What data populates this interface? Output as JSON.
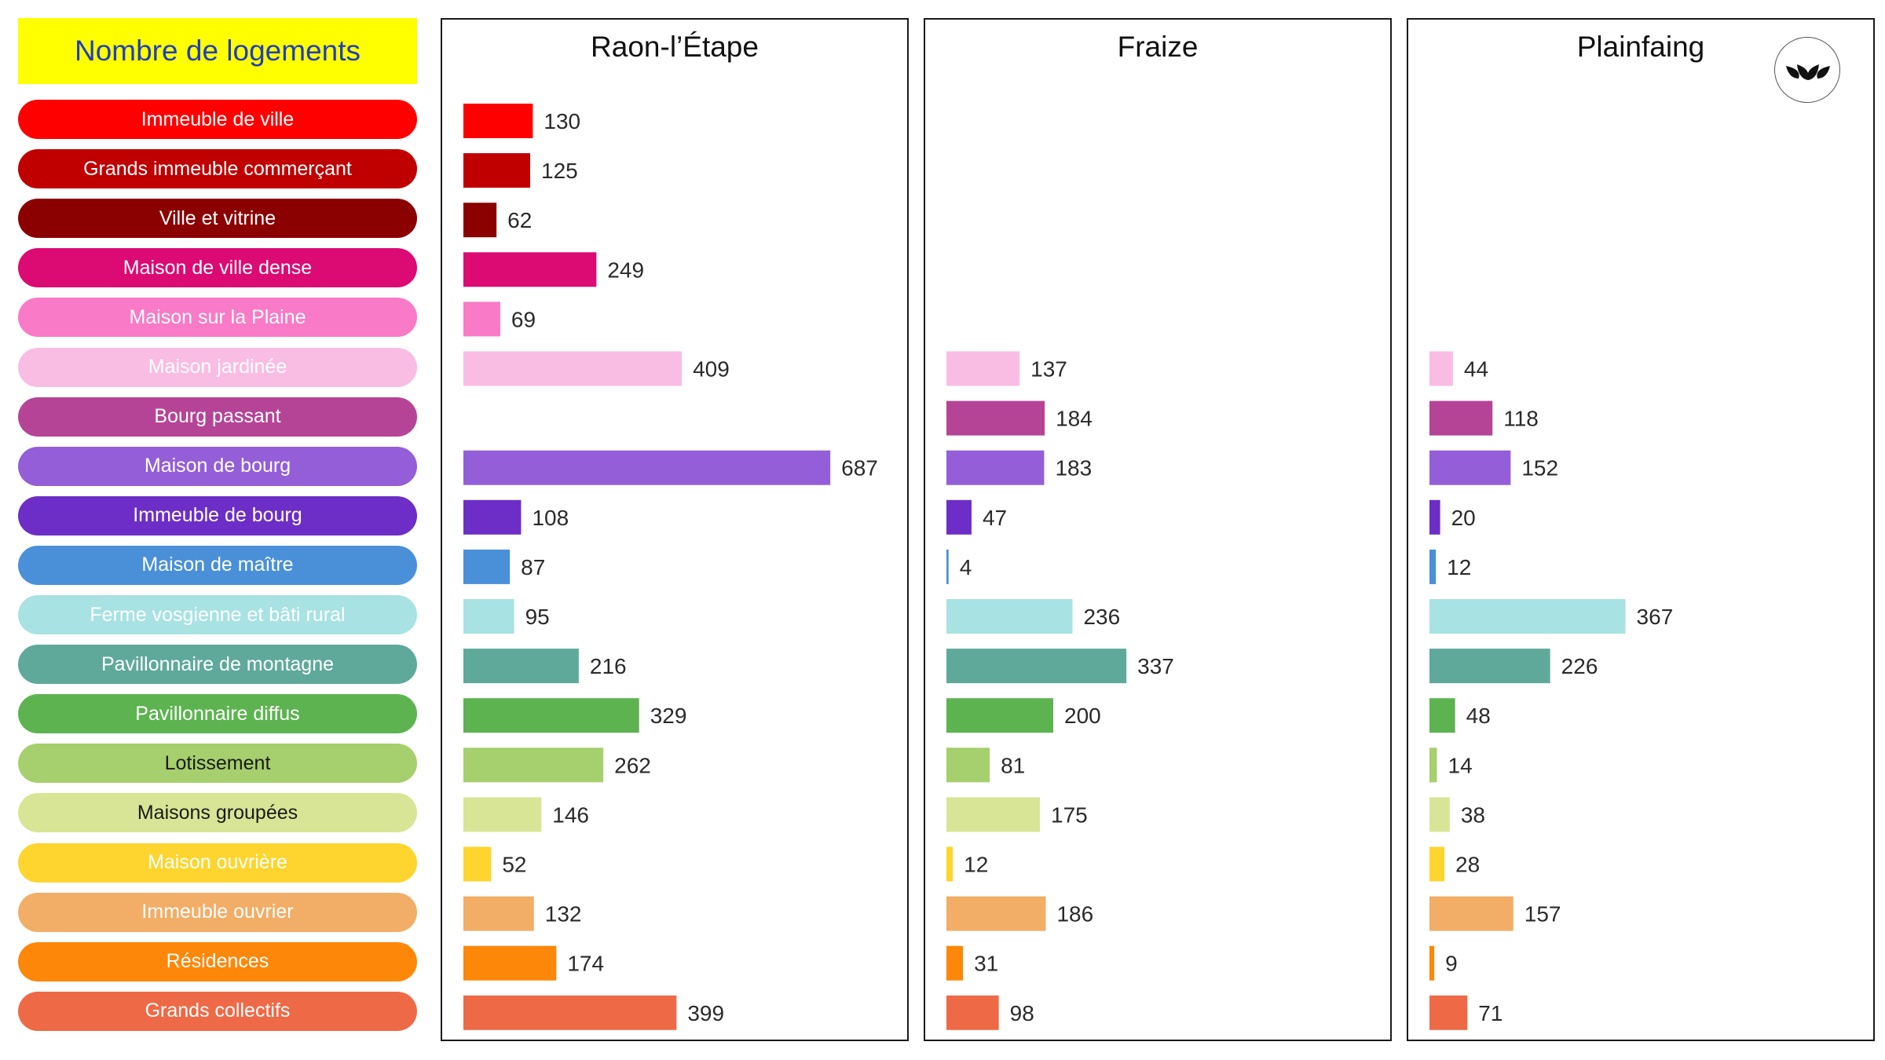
{
  "legend": {
    "title": "Nombre de logements",
    "title_bg": "#ffff00",
    "title_color": "#1f3fbf",
    "items": [
      {
        "label": "Immeuble de ville",
        "color": "#ff0000",
        "text": "#ffffff"
      },
      {
        "label": "Grands immeuble commerçant",
        "color": "#c00000",
        "text": "#ffffff"
      },
      {
        "label": "Ville et vitrine",
        "color": "#8b0000",
        "text": "#ffffff"
      },
      {
        "label": "Maison de ville dense",
        "color": "#dc0a73",
        "text": "#ffffff"
      },
      {
        "label": "Maison sur la Plaine",
        "color": "#f97ac6",
        "text": "#ffffff"
      },
      {
        "label": "Maison jardinée",
        "color": "#f9bde4",
        "text": "#ffffff"
      },
      {
        "label": "Bourg passant",
        "color": "#b64496",
        "text": "#ffffff"
      },
      {
        "label": "Maison de bourg",
        "color": "#945ed8",
        "text": "#ffffff"
      },
      {
        "label": "Immeuble de bourg",
        "color": "#6c2ec6",
        "text": "#ffffff"
      },
      {
        "label": "Maison de maître",
        "color": "#4a90d9",
        "text": "#ffffff"
      },
      {
        "label": "Ferme vosgienne et bâti rural",
        "color": "#a8e2e2",
        "text": "#ffffff"
      },
      {
        "label": "Pavillonnaire de montagne",
        "color": "#5fa99a",
        "text": "#ffffff"
      },
      {
        "label": "Pavillonnaire diffus",
        "color": "#5db350",
        "text": "#ffffff"
      },
      {
        "label": "Lotissement",
        "color": "#a6cf6d",
        "text": "#1a1a1a"
      },
      {
        "label": "Maisons groupées",
        "color": "#d8e596",
        "text": "#1a1a1a"
      },
      {
        "label": "Maison ouvrière",
        "color": "#fdd52e",
        "text": "#ffffff"
      },
      {
        "label": "Immeuble ouvrier",
        "color": "#f2ad66",
        "text": "#ffffff"
      },
      {
        "label": "Résidences",
        "color": "#fd8709",
        "text": "#ffffff"
      },
      {
        "label": "Grands collectifs",
        "color": "#ee6a46",
        "text": "#ffffff"
      }
    ]
  },
  "chart_data": {
    "type": "bar",
    "orientation": "horizontal",
    "categories": [
      "Immeuble de ville",
      "Grands immeuble commerçant",
      "Ville et vitrine",
      "Maison de ville dense",
      "Maison sur la Plaine",
      "Maison jardinée",
      "Bourg passant",
      "Maison de bourg",
      "Immeuble de bourg",
      "Maison de maître",
      "Ferme vosgienne et bâti rural",
      "Pavillonnaire de montagne",
      "Pavillonnaire diffus",
      "Lotissement",
      "Maisons groupées",
      "Maison ouvrière",
      "Immeuble ouvrier",
      "Résidences",
      "Grands collectifs"
    ],
    "panels": [
      {
        "title": "Raon-l’Étape",
        "values": [
          130,
          125,
          62,
          249,
          69,
          409,
          null,
          687,
          108,
          87,
          95,
          216,
          329,
          262,
          146,
          52,
          132,
          174,
          399
        ]
      },
      {
        "title": "Fraize",
        "values": [
          null,
          null,
          null,
          null,
          null,
          137,
          184,
          183,
          47,
          4,
          236,
          337,
          200,
          81,
          175,
          12,
          186,
          31,
          98
        ]
      },
      {
        "title": "Plainfaing",
        "values": [
          null,
          null,
          null,
          null,
          null,
          44,
          118,
          152,
          20,
          12,
          367,
          226,
          48,
          14,
          38,
          28,
          157,
          9,
          71
        ]
      }
    ],
    "xlim": [
      0,
      700
    ],
    "grid": false,
    "legend_position": "left"
  },
  "logo": {
    "icon": "leaf-logo-icon"
  }
}
